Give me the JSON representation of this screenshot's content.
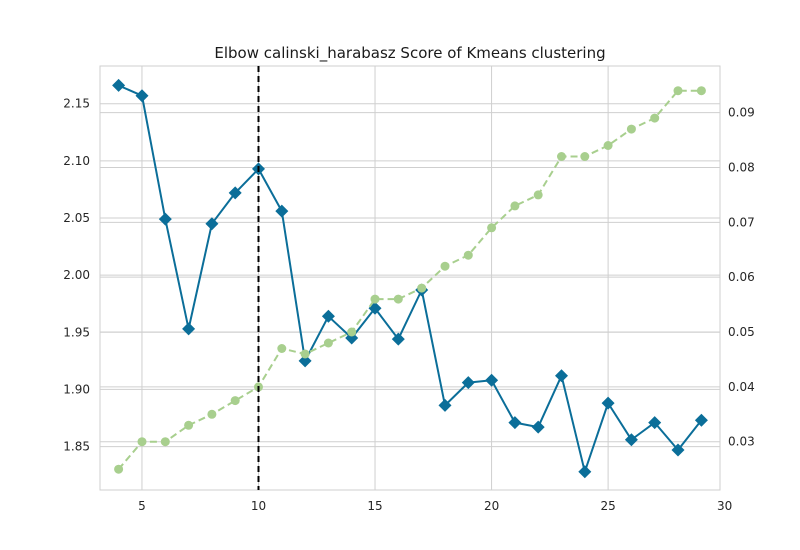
{
  "chart_data": {
    "type": "line",
    "title": "Elbow calinski_harabasz Score of Kmeans clustering",
    "xlabel": "",
    "ylabel": "",
    "y2label": "",
    "x": [
      4,
      5,
      6,
      7,
      8,
      9,
      10,
      11,
      12,
      13,
      14,
      15,
      16,
      17,
      18,
      19,
      20,
      21,
      22,
      23,
      24,
      25,
      26,
      27,
      28,
      29
    ],
    "xlim": [
      3.2,
      29.8
    ],
    "ylim": [
      1.812,
      2.183
    ],
    "y2lim": [
      0.0212,
      0.0985
    ],
    "x_ticks": [
      5,
      10,
      15,
      20,
      25,
      30
    ],
    "y_ticks": [
      1.85,
      1.9,
      1.95,
      2.0,
      2.05,
      2.1,
      2.15
    ],
    "y2_ticks": [
      0.03,
      0.04,
      0.05,
      0.06,
      0.07,
      0.08,
      0.09
    ],
    "x_tick_labels": [
      "5",
      "10",
      "15",
      "20",
      "25",
      "30"
    ],
    "y_tick_labels": [
      "1.85",
      "1.90",
      "1.95",
      "2.00",
      "2.05",
      "2.10",
      "2.15"
    ],
    "y2_tick_labels": [
      "0.03",
      "0.04",
      "0.05",
      "0.06",
      "0.07",
      "0.08",
      "0.09"
    ],
    "series": [
      {
        "axis": "left",
        "marker": "diamond",
        "line_style": "solid",
        "color": "#0b6e99",
        "values": [
          2.166,
          2.157,
          2.049,
          1.953,
          2.045,
          2.072,
          2.093,
          2.056,
          1.925,
          1.964,
          1.945,
          1.971,
          1.944,
          1.987,
          1.886,
          1.906,
          1.908,
          1.871,
          1.867,
          1.912,
          1.828,
          1.888,
          1.856,
          1.871,
          1.847,
          1.873
        ]
      },
      {
        "axis": "right",
        "marker": "circle",
        "line_style": "dashed",
        "color": "#a8cf8e",
        "values": [
          0.025,
          0.03,
          0.03,
          0.033,
          0.035,
          0.0375,
          0.04,
          0.047,
          0.046,
          0.048,
          0.05,
          0.056,
          0.056,
          0.058,
          0.062,
          0.064,
          0.069,
          0.073,
          0.075,
          0.082,
          0.082,
          0.084,
          0.087,
          0.089,
          0.094,
          0.094
        ]
      }
    ],
    "vline": {
      "x": 10,
      "color": "#000000",
      "style": "dashed"
    },
    "grid": true,
    "legend": "none"
  },
  "colors": {
    "background": "#ffffff",
    "grid": "#cfcfcf",
    "axes_edge": "#cfcfcf",
    "text": "#262626"
  }
}
